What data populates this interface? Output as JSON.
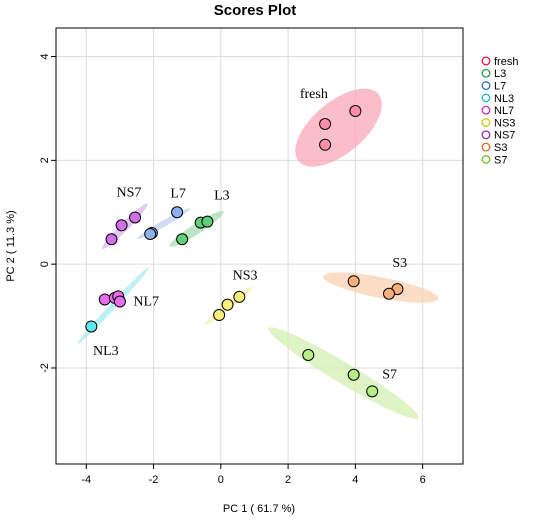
{
  "chart_data": {
    "type": "scatter",
    "title": "Scores Plot",
    "xlabel": "PC 1 ( 61.7 %)",
    "ylabel": "PC 2 ( 11.3 %)",
    "xlim": [
      -4.9,
      7.2
    ],
    "ylim": [
      -3.85,
      4.55
    ],
    "xticks": [
      -4,
      -2,
      0,
      2,
      4,
      6
    ],
    "yticks": [
      -2,
      0,
      2,
      4
    ],
    "grid": true,
    "legend_position": "right",
    "series": [
      {
        "name": "fresh",
        "color": "#e8174a",
        "fill": "#ff8fa8",
        "points": [
          [
            3.1,
            2.7
          ],
          [
            4.0,
            2.95
          ],
          [
            3.1,
            2.3
          ]
        ],
        "ellipse": {
          "cx": 3.5,
          "cy": 2.63,
          "rx": 1.55,
          "ry": 0.5,
          "angle": 40,
          "fill": "#f7a8b8"
        },
        "annotation": {
          "text": "fresh",
          "x": 2.35,
          "y": 3.2
        }
      },
      {
        "name": "L3",
        "color": "#26a14b",
        "fill": "#5fd07a",
        "points": [
          [
            -0.6,
            0.8
          ],
          [
            -0.4,
            0.82
          ],
          [
            -1.15,
            0.48
          ]
        ],
        "ellipse": {
          "cx": -0.72,
          "cy": 0.68,
          "rx": 0.95,
          "ry": 0.1,
          "angle": 33,
          "fill": "#a6dcb2"
        },
        "annotation": {
          "text": "L3",
          "x": -0.2,
          "y": 1.25
        }
      },
      {
        "name": "L7",
        "color": "#2d6bd3",
        "fill": "#8fb0f0",
        "points": [
          [
            -1.3,
            1.0
          ],
          [
            -2.05,
            0.6
          ],
          [
            -2.1,
            0.58
          ]
        ],
        "ellipse": {
          "cx": -1.7,
          "cy": 0.78,
          "rx": 0.9,
          "ry": 0.06,
          "angle": 30,
          "fill": "#c2d2f2"
        },
        "annotation": {
          "text": "L7",
          "x": -1.5,
          "y": 1.28
        }
      },
      {
        "name": "NL3",
        "color": "#18b8c8",
        "fill": "#60e8f0",
        "points": [
          [
            -3.85,
            -1.2
          ]
        ],
        "ellipse": {
          "cx": -3.2,
          "cy": -0.8,
          "rx": 1.55,
          "ry": 0.06,
          "angle": 47,
          "fill": "#a8ecf2"
        },
        "annotation": {
          "text": "NL3",
          "x": -3.8,
          "y": -1.75
        }
      },
      {
        "name": "NL7",
        "color": "#c02fc8",
        "fill": "#e86ef0",
        "points": [
          [
            -3.45,
            -0.68
          ],
          [
            -3.15,
            -0.65
          ],
          [
            -3.05,
            -0.62
          ],
          [
            -3.0,
            -0.72
          ]
        ],
        "ellipse": {
          "cx": -3.25,
          "cy": -0.68,
          "rx": 0.3,
          "ry": 0.05,
          "angle": 10,
          "fill": "#f0b0f0"
        },
        "annotation": {
          "text": "NL7",
          "x": -2.6,
          "y": -0.8
        }
      },
      {
        "name": "NS3",
        "color": "#d4c21a",
        "fill": "#fbf07a",
        "points": [
          [
            0.55,
            -0.63
          ],
          [
            0.2,
            -0.78
          ],
          [
            -0.05,
            -0.98
          ]
        ],
        "ellipse": {
          "cx": 0.25,
          "cy": -0.8,
          "rx": 0.9,
          "ry": 0.06,
          "angle": 38,
          "fill": "#f6f0b8"
        },
        "annotation": {
          "text": "NS3",
          "x": 0.35,
          "y": -0.3
        }
      },
      {
        "name": "NS7",
        "color": "#8a2db8",
        "fill": "#d070e8",
        "points": [
          [
            -2.55,
            0.9
          ],
          [
            -2.95,
            0.75
          ],
          [
            -3.25,
            0.48
          ]
        ],
        "ellipse": {
          "cx": -2.85,
          "cy": 0.73,
          "rx": 0.95,
          "ry": 0.08,
          "angle": 45,
          "fill": "#dcb4ee"
        },
        "annotation": {
          "text": "NS7",
          "x": -3.1,
          "y": 1.3
        }
      },
      {
        "name": "S3",
        "color": "#e36a1e",
        "fill": "#f7b07a",
        "points": [
          [
            3.95,
            -0.33
          ],
          [
            5.25,
            -0.48
          ],
          [
            5.0,
            -0.57
          ]
        ],
        "ellipse": {
          "cx": 4.75,
          "cy": -0.45,
          "rx": 1.75,
          "ry": 0.2,
          "angle": -11,
          "fill": "#f9d0b0"
        },
        "annotation": {
          "text": "S3",
          "x": 5.1,
          "y": -0.05
        }
      },
      {
        "name": "S7",
        "color": "#6cc21a",
        "fill": "#b8ee88",
        "points": [
          [
            2.6,
            -1.75
          ],
          [
            3.95,
            -2.13
          ],
          [
            4.5,
            -2.45
          ]
        ],
        "ellipse": {
          "cx": 3.65,
          "cy": -2.1,
          "rx": 2.6,
          "ry": 0.2,
          "angle": -31,
          "fill": "#d4f0b0"
        },
        "annotation": {
          "text": "S7",
          "x": 4.8,
          "y": -2.2
        }
      }
    ]
  }
}
